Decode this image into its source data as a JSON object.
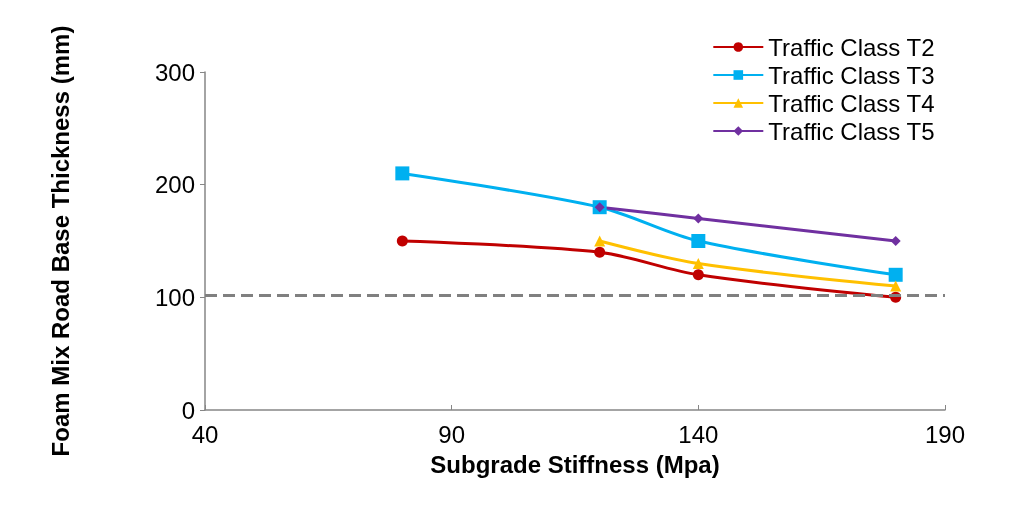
{
  "chart_data": {
    "type": "line",
    "xlabel": "Subgrade Stiffness (Mpa)",
    "ylabel": "Foam Mix Road Base Thickness (mm)",
    "xlim": [
      40,
      190
    ],
    "xticks": [
      40,
      90,
      140,
      190
    ],
    "ylim": [
      0,
      300
    ],
    "yticks": [
      0,
      100,
      200,
      300
    ],
    "grid": false,
    "legend": "top right",
    "x": [
      80,
      120,
      140,
      180
    ],
    "series": [
      {
        "name": "Traffic Class T2",
        "color": "#c00000",
        "marker": "circle",
        "values": [
          150,
          140,
          120,
          100
        ]
      },
      {
        "name": "Traffic Class T3",
        "color": "#00b0f0",
        "marker": "square",
        "values": [
          210,
          180,
          150,
          120
        ]
      },
      {
        "name": "Traffic Class T4",
        "color": "#ffc000",
        "marker": "triangle",
        "values": [
          null,
          150,
          130,
          110
        ]
      },
      {
        "name": "Traffic Class T5",
        "color": "#7030a0",
        "marker": "diamond",
        "values": [
          null,
          180,
          170,
          150
        ]
      }
    ],
    "ref_lines": [
      {
        "axis": "y",
        "value": 102,
        "color": "#808080",
        "line_style": "dashed"
      }
    ]
  }
}
